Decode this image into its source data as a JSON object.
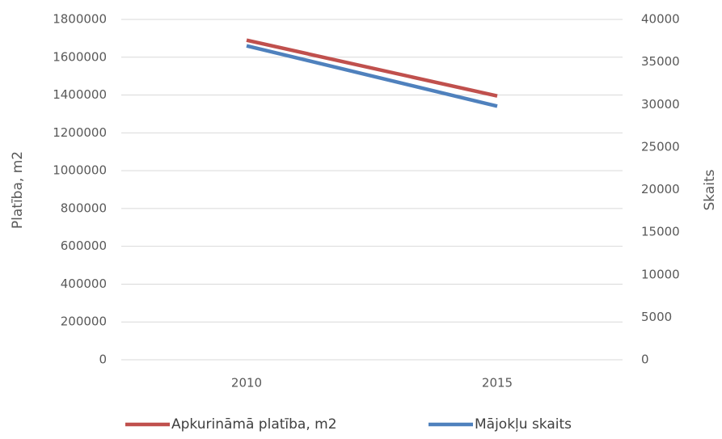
{
  "chart_data": {
    "type": "line",
    "categories": [
      "2010",
      "2015"
    ],
    "series": [
      {
        "name": "Apkurināmā platība, m2",
        "color": "#c0504d",
        "values": [
          1690000,
          1395000
        ]
      },
      {
        "name": "Mājokļu skaits",
        "color": "#4f81bd",
        "values": [
          36900,
          29800
        ],
        "axis": "y2"
      }
    ],
    "ylabel": "Platība, m2",
    "y2label": "Skaits",
    "ylim": [
      0,
      1800000
    ],
    "yticks": [
      0,
      200000,
      400000,
      600000,
      800000,
      1000000,
      1200000,
      1400000,
      1600000,
      1800000
    ],
    "y2lim": [
      0,
      40000
    ],
    "y2ticks": [
      0,
      5000,
      10000,
      15000,
      20000,
      25000,
      30000,
      35000,
      40000
    ],
    "grid": true,
    "legend": "bottom"
  }
}
